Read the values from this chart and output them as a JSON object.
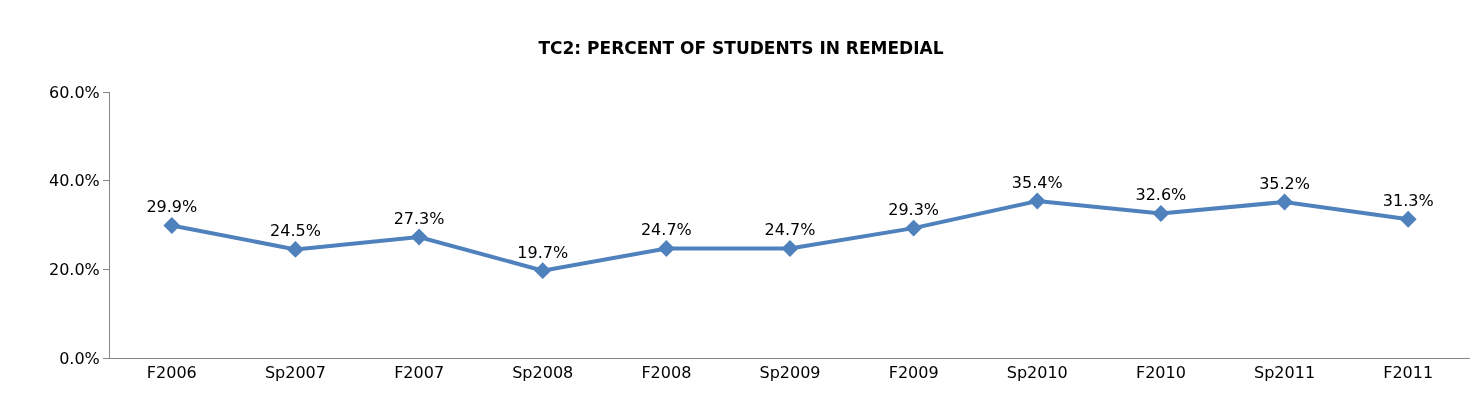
{
  "chart_data": {
    "type": "line",
    "title": "TC2: PERCENT OF STUDENTS IN REMEDIAL",
    "categories": [
      "F2006",
      "Sp2007",
      "F2007",
      "Sp2008",
      "F2008",
      "Sp2009",
      "F2009",
      "Sp2010",
      "F2010",
      "Sp2011",
      "F2011"
    ],
    "values": [
      29.9,
      24.5,
      27.3,
      19.7,
      24.7,
      24.7,
      29.3,
      35.4,
      32.6,
      35.2,
      31.3
    ],
    "value_labels": [
      "29.9%",
      "24.5%",
      "27.3%",
      "19.7%",
      "24.7%",
      "24.7%",
      "29.3%",
      "35.4%",
      "32.6%",
      "35.2%",
      "31.3%"
    ],
    "color": "#4f81bd",
    "marker": "diamond",
    "line_style": "solid",
    "legend": false,
    "ylim": [
      0,
      60
    ],
    "yticks": [
      {
        "value": 0,
        "label": "0.0%"
      },
      {
        "value": 20,
        "label": "20.0%"
      },
      {
        "value": 40,
        "label": "40.0%"
      },
      {
        "value": 60,
        "label": "60.0%"
      }
    ]
  }
}
